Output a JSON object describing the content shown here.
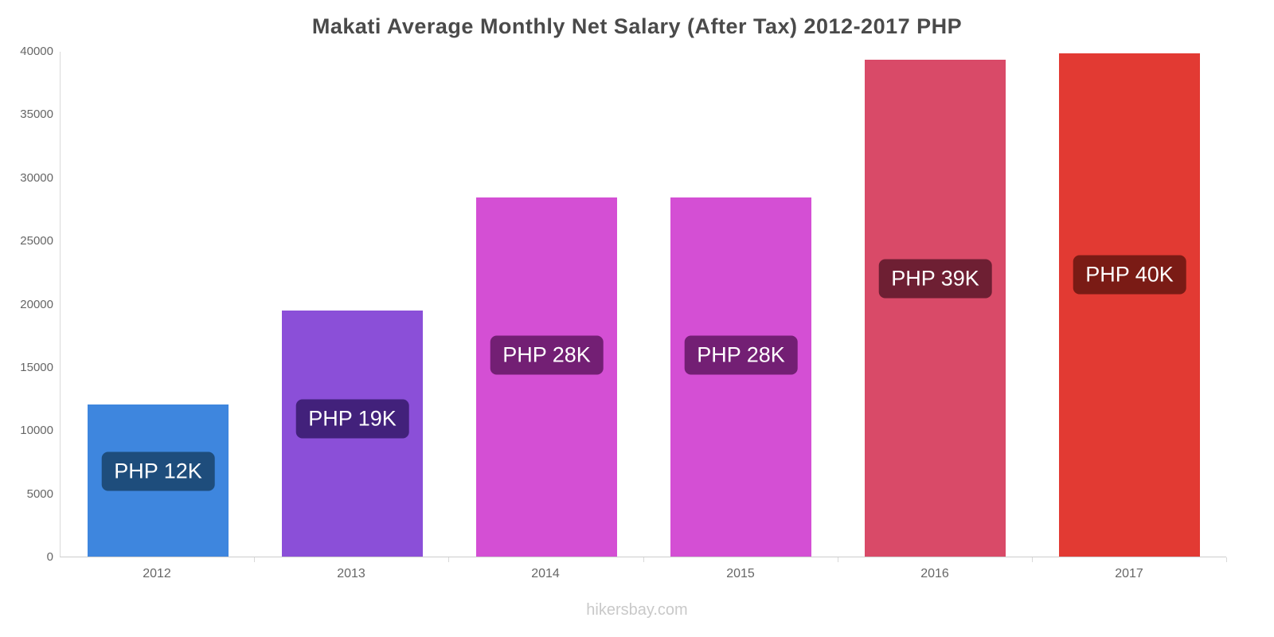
{
  "title": "Makati Average Monthly Net Salary (After Tax) 2012-2017 PHP",
  "footer": "hikersbay.com",
  "chart_data": {
    "type": "bar",
    "title": "Makati Average Monthly Net Salary (After Tax) 2012-2017 PHP",
    "categories": [
      "2012",
      "2013",
      "2014",
      "2015",
      "2016",
      "2017"
    ],
    "values": [
      12000,
      19450,
      28400,
      28400,
      39300,
      39800
    ],
    "bar_labels": [
      "PHP 12K",
      "PHP 19K",
      "PHP 28K",
      "PHP 28K",
      "PHP 39K",
      "PHP 40K"
    ],
    "bar_colors": [
      "#3e86de",
      "#8b4fd8",
      "#d44fd4",
      "#d44fd4",
      "#d94a68",
      "#e23a33"
    ],
    "label_bg_colors": [
      "#1e4d7c",
      "#42217b",
      "#731f74",
      "#731f74",
      "#6e1f33",
      "#7a1b15"
    ],
    "xlabel": "",
    "ylabel": "",
    "ylim": [
      0,
      40000
    ],
    "yticks": [
      0,
      5000,
      10000,
      15000,
      20000,
      25000,
      30000,
      35000,
      40000
    ],
    "grid": false,
    "legend": false
  }
}
